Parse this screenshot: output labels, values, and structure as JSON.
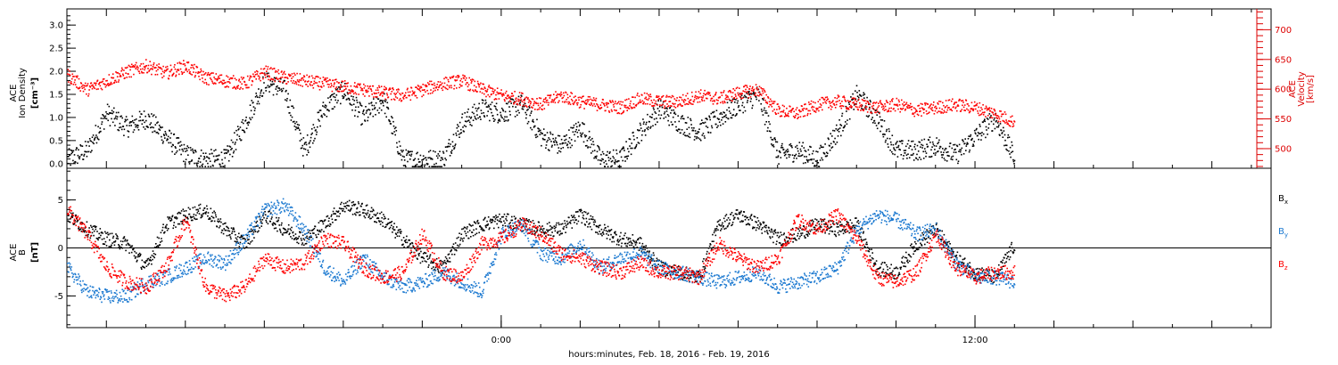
{
  "chart_data": [
    {
      "type": "scatter",
      "panel": "top",
      "ylabel_left_lines": [
        "ACE",
        "Ion Density"
      ],
      "ylabel_left_unit": "[cm⁻³]",
      "ylabel_right_lines": [
        "ACE",
        "Velocity"
      ],
      "ylabel_right_unit": "[km/s]",
      "ylim_left": [
        -0.1,
        3.35
      ],
      "ylim_right": [
        467,
        735
      ],
      "left_ticks": [
        "0.0",
        "0.5",
        "1.0",
        "1.5",
        "2.0",
        "2.5",
        "3.0"
      ],
      "right_ticks": [
        "500",
        "550",
        "600",
        "650",
        "700"
      ],
      "x_hours_range": [
        -11,
        19.5
      ],
      "series": [
        {
          "axis": "left",
          "color": "#000000",
          "x_hours": [
            -11.0,
            -10.5,
            -10.0,
            -9.5,
            -9.0,
            -8.5,
            -8.0,
            -7.5,
            -7.0,
            -6.5,
            -6.0,
            -5.5,
            -5.0,
            -4.5,
            -4.0,
            -3.5,
            -3.0,
            -2.5,
            -2.0,
            -1.5,
            -1.0,
            -0.5,
            0.0,
            0.5,
            1.0,
            1.5,
            2.0,
            2.5,
            3.0,
            3.5,
            4.0,
            4.5,
            5.0,
            5.5,
            6.0,
            6.5,
            7.0,
            7.5,
            8.0,
            8.5,
            9.0,
            9.5,
            10.0,
            10.5,
            11.0,
            11.5,
            12.0,
            12.5,
            13.0
          ],
          "values": [
            0.1,
            0.3,
            1.1,
            0.8,
            1.0,
            0.6,
            0.2,
            0.1,
            0.1,
            0.9,
            1.8,
            1.6,
            0.3,
            1.2,
            1.6,
            1.0,
            1.4,
            0.1,
            0.1,
            0.1,
            0.9,
            1.2,
            1.1,
            1.3,
            0.6,
            0.4,
            0.8,
            0.1,
            0.1,
            0.7,
            1.2,
            0.9,
            0.7,
            1.0,
            1.3,
            1.5,
            0.2,
            0.3,
            0.1,
            0.7,
            1.5,
            1.0,
            0.3,
            0.3,
            0.4,
            0.2,
            0.6,
            1.0,
            0.1
          ]
        },
        {
          "axis": "right",
          "color": "#ff0000",
          "x_hours": [
            -11.0,
            -10.5,
            -10.0,
            -9.5,
            -9.0,
            -8.5,
            -8.0,
            -7.5,
            -7.0,
            -6.5,
            -6.0,
            -5.5,
            -5.0,
            -4.5,
            -4.0,
            -3.5,
            -3.0,
            -2.5,
            -2.0,
            -1.5,
            -1.0,
            -0.5,
            0.0,
            0.5,
            1.0,
            1.5,
            2.0,
            2.5,
            3.0,
            3.5,
            4.0,
            4.5,
            5.0,
            5.5,
            6.0,
            6.5,
            7.0,
            7.5,
            8.0,
            8.5,
            9.0,
            9.5,
            10.0,
            10.5,
            11.0,
            11.5,
            12.0,
            12.5,
            13.0
          ],
          "values": [
            625,
            600,
            615,
            630,
            640,
            628,
            640,
            620,
            615,
            610,
            630,
            620,
            615,
            610,
            605,
            600,
            595,
            590,
            600,
            610,
            615,
            600,
            590,
            585,
            575,
            590,
            580,
            575,
            570,
            585,
            580,
            580,
            590,
            585,
            595,
            600,
            565,
            560,
            575,
            580,
            575,
            570,
            575,
            565,
            570,
            575,
            570,
            560,
            545
          ]
        }
      ]
    },
    {
      "type": "scatter",
      "panel": "bottom",
      "ylabel_lines": [
        "ACE",
        "B"
      ],
      "ylabel_unit": "[nT]",
      "ylim": [
        -8.3,
        8.3
      ],
      "ticks": [
        "5",
        "0",
        "-5"
      ],
      "x_hours_range": [
        -11,
        19.5
      ],
      "zero_line": true,
      "series": [
        {
          "name": "B",
          "subscript": "x",
          "color": "#000000",
          "x_hours": [
            -11.0,
            -10.5,
            -10.0,
            -9.5,
            -9.0,
            -8.5,
            -8.0,
            -7.5,
            -7.0,
            -6.5,
            -6.0,
            -5.5,
            -5.0,
            -4.5,
            -4.0,
            -3.5,
            -3.0,
            -2.5,
            -2.0,
            -1.5,
            -1.0,
            -0.5,
            0.0,
            0.5,
            1.0,
            1.5,
            2.0,
            2.5,
            3.0,
            3.5,
            4.0,
            4.5,
            5.0,
            5.5,
            6.0,
            6.5,
            7.0,
            7.5,
            8.0,
            8.5,
            9.0,
            9.5,
            10.0,
            10.5,
            11.0,
            11.5,
            12.0,
            12.5,
            13.0
          ],
          "values": [
            3.5,
            2.0,
            1.0,
            0.5,
            -2.0,
            2.5,
            3.5,
            4.0,
            2.0,
            0.5,
            3.5,
            2.0,
            1.0,
            2.5,
            4.5,
            4.0,
            3.0,
            1.0,
            -1.0,
            -2.0,
            1.5,
            2.5,
            3.0,
            2.5,
            2.0,
            2.0,
            3.5,
            2.0,
            1.0,
            0.5,
            -2.0,
            -2.5,
            -3.0,
            2.5,
            3.5,
            2.5,
            1.0,
            1.5,
            2.5,
            2.0,
            2.5,
            -2.0,
            -2.5,
            0.5,
            2.0,
            -1.0,
            -2.5,
            -3.0,
            0.5
          ]
        },
        {
          "name": "B",
          "subscript": "y",
          "color": "#1a78d0",
          "x_hours": [
            -11.0,
            -10.5,
            -10.0,
            -9.5,
            -9.0,
            -8.5,
            -8.0,
            -7.5,
            -7.0,
            -6.5,
            -6.0,
            -5.5,
            -5.0,
            -4.5,
            -4.0,
            -3.5,
            -3.0,
            -2.5,
            -2.0,
            -1.5,
            -1.0,
            -0.5,
            0.0,
            0.5,
            1.0,
            1.5,
            2.0,
            2.5,
            3.0,
            3.5,
            4.0,
            4.5,
            5.0,
            5.5,
            6.0,
            6.5,
            7.0,
            7.5,
            8.0,
            8.5,
            9.0,
            9.5,
            10.0,
            10.5,
            11.0,
            11.5,
            12.0,
            12.5,
            13.0
          ],
          "values": [
            -2.0,
            -4.5,
            -5.0,
            -5.0,
            -3.5,
            -3.0,
            -2.0,
            -1.0,
            -1.5,
            1.0,
            4.0,
            4.5,
            2.0,
            -2.0,
            -3.5,
            -1.0,
            -3.0,
            -4.0,
            -3.5,
            -2.5,
            -3.5,
            -4.5,
            1.5,
            2.5,
            -0.5,
            -1.0,
            0.5,
            -2.0,
            -1.0,
            -0.5,
            -2.0,
            -2.5,
            -3.0,
            -3.5,
            -3.0,
            -2.5,
            -4.0,
            -3.5,
            -3.0,
            -2.0,
            2.0,
            3.5,
            3.0,
            1.5,
            2.0,
            -1.5,
            -3.0,
            -3.0,
            -3.5
          ]
        },
        {
          "name": "B",
          "subscript": "z",
          "color": "#ff0000",
          "x_hours": [
            -11.0,
            -10.5,
            -10.0,
            -9.5,
            -9.0,
            -8.5,
            -8.0,
            -7.5,
            -7.0,
            -6.5,
            -6.0,
            -5.5,
            -5.0,
            -4.5,
            -4.0,
            -3.5,
            -3.0,
            -2.5,
            -2.0,
            -1.5,
            -1.0,
            -0.5,
            0.0,
            0.5,
            1.0,
            1.5,
            2.0,
            2.5,
            3.0,
            3.5,
            4.0,
            4.5,
            5.0,
            5.5,
            6.0,
            6.5,
            7.0,
            7.5,
            8.0,
            8.5,
            9.0,
            9.5,
            10.0,
            10.5,
            11.0,
            11.5,
            12.0,
            12.5,
            13.0
          ],
          "values": [
            4.0,
            1.5,
            -2.0,
            -3.5,
            -4.0,
            -2.0,
            3.0,
            -4.0,
            -5.0,
            -4.0,
            -1.0,
            -2.0,
            -1.5,
            1.0,
            0.5,
            -2.0,
            -3.0,
            -2.5,
            1.5,
            -2.5,
            -3.0,
            0.5,
            1.0,
            2.5,
            1.5,
            -0.5,
            -1.0,
            -2.0,
            -2.5,
            -1.5,
            -2.5,
            -2.5,
            -3.0,
            0.5,
            -1.0,
            -2.0,
            -1.0,
            3.0,
            2.0,
            3.5,
            1.0,
            -3.0,
            -3.5,
            -2.5,
            1.5,
            -2.0,
            -3.0,
            -2.5,
            -2.5
          ]
        }
      ]
    }
  ],
  "x_axis": {
    "ticks": [
      {
        "hours": 0,
        "label": "0:00"
      },
      {
        "hours": 12,
        "label": "12:00"
      }
    ],
    "title": "hours:minutes, Feb. 18, 2016 - Feb. 19, 2016"
  },
  "colors": {
    "black": "#000000",
    "red": "#ff0000",
    "blue": "#1a78d0",
    "frame": "#000000",
    "right_axis": "#dd0000"
  }
}
